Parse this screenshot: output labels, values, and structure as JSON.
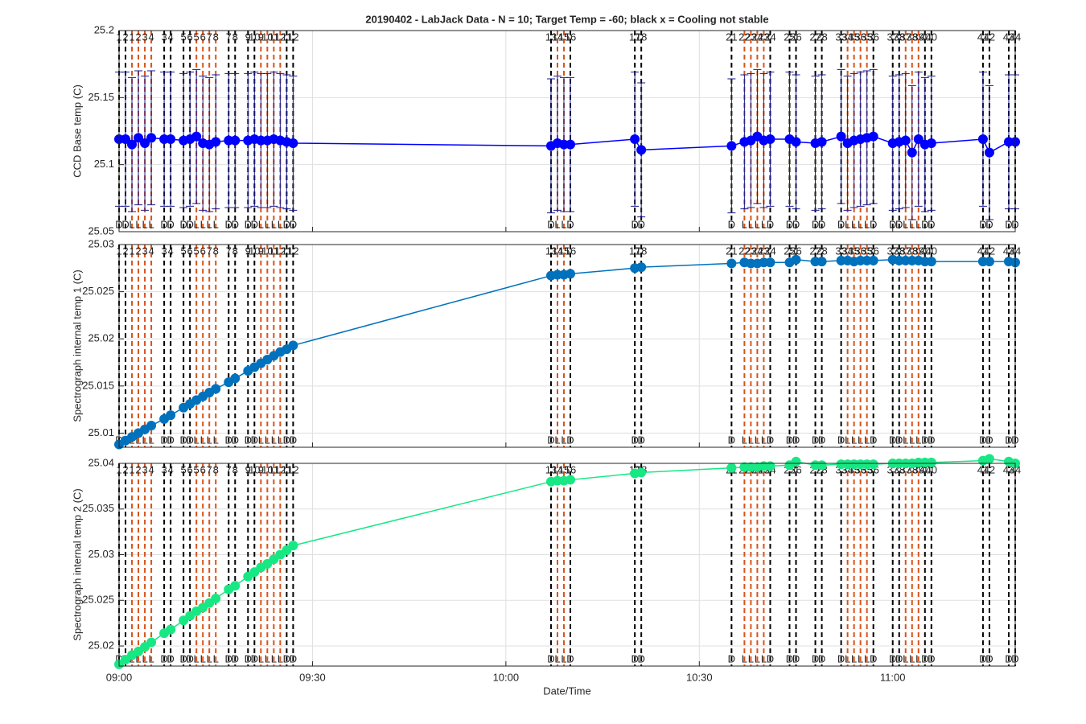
{
  "chart_data": [
    {
      "type": "line",
      "title": "20190402 - LabJack Data - N = 10; Target Temp = -60; black x = Cooling not stable",
      "ylabel": "CCD Base temp (C)",
      "xlim": [
        "09:00",
        "11:19"
      ],
      "xticks": [
        "09:00",
        "09:30",
        "10:00",
        "10:30",
        "11:00"
      ],
      "ylim": [
        25.05,
        25.2
      ],
      "yticks": [
        25.05,
        25.1,
        25.15,
        25.2
      ],
      "grid": true,
      "color": "#0000ff",
      "error_color": "#1a1a8c",
      "x": [
        "09:00",
        "09:01",
        "09:02",
        "09:03",
        "09:04",
        "09:05",
        "09:07",
        "09:08",
        "09:10",
        "09:11",
        "09:12",
        "09:13",
        "09:14",
        "09:15",
        "09:17",
        "09:18",
        "09:20",
        "09:21",
        "09:22",
        "09:23",
        "09:24",
        "09:25",
        "09:26",
        "09:27",
        "10:07",
        "10:08",
        "10:09",
        "10:10",
        "10:20",
        "10:21",
        "10:35",
        "10:37",
        "10:38",
        "10:39",
        "10:40",
        "10:41",
        "10:44",
        "10:45",
        "10:48",
        "10:49",
        "10:52",
        "10:53",
        "10:54",
        "10:55",
        "10:56",
        "10:57",
        "11:00",
        "11:01",
        "11:02",
        "11:03",
        "11:04",
        "11:05",
        "11:06",
        "11:14",
        "11:15",
        "11:18",
        "11:19"
      ],
      "values": [
        25.119,
        25.119,
        25.115,
        25.12,
        25.116,
        25.12,
        25.119,
        25.119,
        25.118,
        25.119,
        25.121,
        25.116,
        25.115,
        25.117,
        25.118,
        25.118,
        25.118,
        25.119,
        25.118,
        25.118,
        25.119,
        25.118,
        25.117,
        25.116,
        25.114,
        25.116,
        25.115,
        25.115,
        25.119,
        25.111,
        25.114,
        25.117,
        25.118,
        25.121,
        25.118,
        25.119,
        25.119,
        25.117,
        25.116,
        25.117,
        25.121,
        25.116,
        25.118,
        25.119,
        25.12,
        25.121,
        25.116,
        25.117,
        25.118,
        25.109,
        25.119,
        25.115,
        25.116,
        25.119,
        25.109,
        25.117,
        25.117
      ],
      "errors": [
        0.05,
        0.05,
        0.05,
        0.05,
        0.05,
        0.05,
        0.05,
        0.05,
        0.05,
        0.05,
        0.05,
        0.05,
        0.05,
        0.05,
        0.05,
        0.05,
        0.05,
        0.05,
        0.05,
        0.05,
        0.05,
        0.05,
        0.05,
        0.05,
        0.05,
        0.05,
        0.05,
        0.05,
        0.05,
        0.05,
        0.05,
        0.05,
        0.05,
        0.05,
        0.05,
        0.05,
        0.05,
        0.05,
        0.05,
        0.05,
        0.05,
        0.05,
        0.05,
        0.05,
        0.05,
        0.05,
        0.05,
        0.05,
        0.05,
        0.05,
        0.05,
        0.05,
        0.05,
        0.05,
        0.05,
        0.05,
        0.05
      ],
      "event_colors": {
        "D": "#000000",
        "L": "#d95319"
      },
      "events": [
        {
          "time": "09:00",
          "label": "1",
          "code": "D"
        },
        {
          "time": "09:01",
          "label": "2",
          "code": "D"
        },
        {
          "time": "09:02",
          "label": "1",
          "code": "L"
        },
        {
          "time": "09:03",
          "label": "2",
          "code": "L"
        },
        {
          "time": "09:04",
          "label": "3",
          "code": "L"
        },
        {
          "time": "09:05",
          "label": "4",
          "code": "L"
        },
        {
          "time": "09:07",
          "label": "3",
          "code": "D"
        },
        {
          "time": "09:08",
          "label": "4",
          "code": "D"
        },
        {
          "time": "09:10",
          "label": "5",
          "code": "D"
        },
        {
          "time": "09:11",
          "label": "6",
          "code": "D"
        },
        {
          "time": "09:12",
          "label": "5",
          "code": "L"
        },
        {
          "time": "09:13",
          "label": "6",
          "code": "L"
        },
        {
          "time": "09:14",
          "label": "7",
          "code": "L"
        },
        {
          "time": "09:15",
          "label": "8",
          "code": "L"
        },
        {
          "time": "09:17",
          "label": "7",
          "code": "D"
        },
        {
          "time": "09:18",
          "label": "8",
          "code": "D"
        },
        {
          "time": "09:20",
          "label": "9",
          "code": "D"
        },
        {
          "time": "09:21",
          "label": "10",
          "code": "D"
        },
        {
          "time": "09:22",
          "label": "9",
          "code": "L"
        },
        {
          "time": "09:23",
          "label": "10",
          "code": "L"
        },
        {
          "time": "09:24",
          "label": "11",
          "code": "L"
        },
        {
          "time": "09:25",
          "label": "12",
          "code": "L"
        },
        {
          "time": "09:26",
          "label": "11",
          "code": "D"
        },
        {
          "time": "09:27",
          "label": "12",
          "code": "D"
        },
        {
          "time": "10:07",
          "label": "13",
          "code": "D"
        },
        {
          "time": "10:08",
          "label": "14",
          "code": "L"
        },
        {
          "time": "10:09",
          "label": "15",
          "code": "L"
        },
        {
          "time": "10:10",
          "label": "16",
          "code": "D"
        },
        {
          "time": "10:20",
          "label": "17",
          "code": "D"
        },
        {
          "time": "10:21",
          "label": "18",
          "code": "D"
        },
        {
          "time": "10:35",
          "label": "21",
          "code": "D"
        },
        {
          "time": "10:37",
          "label": "22",
          "code": "L"
        },
        {
          "time": "10:38",
          "label": "23",
          "code": "L"
        },
        {
          "time": "10:39",
          "label": "24",
          "code": "L"
        },
        {
          "time": "10:40",
          "label": "23",
          "code": "L"
        },
        {
          "time": "10:41",
          "label": "24",
          "code": "D"
        },
        {
          "time": "10:44",
          "label": "25",
          "code": "D"
        },
        {
          "time": "10:45",
          "label": "26",
          "code": "D"
        },
        {
          "time": "10:48",
          "label": "27",
          "code": "D"
        },
        {
          "time": "10:49",
          "label": "28",
          "code": "D"
        },
        {
          "time": "10:52",
          "label": "33",
          "code": "D"
        },
        {
          "time": "10:53",
          "label": "34",
          "code": "L"
        },
        {
          "time": "10:54",
          "label": "35",
          "code": "L"
        },
        {
          "time": "10:55",
          "label": "36",
          "code": "L"
        },
        {
          "time": "10:56",
          "label": "35",
          "code": "L"
        },
        {
          "time": "10:57",
          "label": "36",
          "code": "D"
        },
        {
          "time": "11:00",
          "label": "37",
          "code": "D"
        },
        {
          "time": "11:01",
          "label": "38",
          "code": "D"
        },
        {
          "time": "11:02",
          "label": "37",
          "code": "L"
        },
        {
          "time": "11:03",
          "label": "38",
          "code": "L"
        },
        {
          "time": "11:04",
          "label": "39",
          "code": "L"
        },
        {
          "time": "11:05",
          "label": "40",
          "code": "D"
        },
        {
          "time": "11:06",
          "label": "40",
          "code": "D"
        },
        {
          "time": "11:14",
          "label": "41",
          "code": "D"
        },
        {
          "time": "11:15",
          "label": "42",
          "code": "D"
        },
        {
          "time": "11:18",
          "label": "43",
          "code": "D"
        },
        {
          "time": "11:19",
          "label": "44",
          "code": "D"
        }
      ]
    },
    {
      "type": "line",
      "ylabel": "Spectrograph internal temp 1 (C)",
      "xlim": [
        "09:00",
        "11:19"
      ],
      "xticks": [
        "09:00",
        "09:30",
        "10:00",
        "10:30",
        "11:00"
      ],
      "ylim": [
        25.0085,
        25.03
      ],
      "yticks": [
        25.01,
        25.015,
        25.02,
        25.025,
        25.03
      ],
      "grid": true,
      "color": "#0072bd",
      "x": [
        "09:00",
        "09:01",
        "09:02",
        "09:03",
        "09:04",
        "09:05",
        "09:07",
        "09:08",
        "09:10",
        "09:11",
        "09:12",
        "09:13",
        "09:14",
        "09:15",
        "09:17",
        "09:18",
        "09:20",
        "09:21",
        "09:22",
        "09:23",
        "09:24",
        "09:25",
        "09:26",
        "09:27",
        "10:07",
        "10:08",
        "10:09",
        "10:10",
        "10:20",
        "10:21",
        "10:35",
        "10:37",
        "10:38",
        "10:39",
        "10:40",
        "10:41",
        "10:44",
        "10:45",
        "10:48",
        "10:49",
        "10:52",
        "10:53",
        "10:54",
        "10:55",
        "10:56",
        "10:57",
        "11:00",
        "11:01",
        "11:02",
        "11:03",
        "11:04",
        "11:05",
        "11:06",
        "11:14",
        "11:15",
        "11:18",
        "11:19"
      ],
      "values": [
        25.0088,
        25.0092,
        25.0096,
        25.01,
        25.0104,
        25.0108,
        25.0115,
        25.0119,
        25.0127,
        25.0131,
        25.0135,
        25.0139,
        25.0143,
        25.0147,
        25.0154,
        25.0158,
        25.0166,
        25.017,
        25.0174,
        25.0178,
        25.0182,
        25.0186,
        25.0189,
        25.0193,
        25.0267,
        25.0268,
        25.0268,
        25.0269,
        25.0275,
        25.0276,
        25.028,
        25.0281,
        25.028,
        25.028,
        25.0281,
        25.0281,
        25.0281,
        25.0284,
        25.0282,
        25.0282,
        25.0283,
        25.0283,
        25.0282,
        25.0283,
        25.0283,
        25.0283,
        25.0284,
        25.0283,
        25.0283,
        25.0283,
        25.0283,
        25.0282,
        25.0282,
        25.0282,
        25.0282,
        25.0282,
        25.0281
      ]
    },
    {
      "type": "line",
      "ylabel": "Spectrograph internal temp 2 (C)",
      "xlabel": "Date/Time",
      "xtick_labels": true,
      "xlim": [
        "09:00",
        "11:19"
      ],
      "xticks": [
        "09:00",
        "09:30",
        "10:00",
        "10:30",
        "11:00"
      ],
      "ylim": [
        25.0178,
        25.04
      ],
      "yticks": [
        25.02,
        25.025,
        25.03,
        25.035,
        25.04
      ],
      "grid": true,
      "color": "#17e884",
      "x": [
        "09:00",
        "09:01",
        "09:02",
        "09:03",
        "09:04",
        "09:05",
        "09:07",
        "09:08",
        "09:10",
        "09:11",
        "09:12",
        "09:13",
        "09:14",
        "09:15",
        "09:17",
        "09:18",
        "09:20",
        "09:21",
        "09:22",
        "09:23",
        "09:24",
        "09:25",
        "09:26",
        "09:27",
        "10:07",
        "10:08",
        "10:09",
        "10:10",
        "10:20",
        "10:21",
        "10:35",
        "10:37",
        "10:38",
        "10:39",
        "10:40",
        "10:41",
        "10:44",
        "10:45",
        "10:48",
        "10:49",
        "10:52",
        "10:53",
        "10:54",
        "10:55",
        "10:56",
        "10:57",
        "11:00",
        "11:01",
        "11:02",
        "11:03",
        "11:04",
        "11:05",
        "11:06",
        "11:14",
        "11:15",
        "11:18",
        "11:19"
      ],
      "values": [
        25.018,
        25.0185,
        25.019,
        25.0194,
        25.0199,
        25.0204,
        25.0214,
        25.0218,
        25.0228,
        25.0233,
        25.0238,
        25.0242,
        25.0247,
        25.0252,
        25.0262,
        25.0266,
        25.0276,
        25.0281,
        25.0286,
        25.029,
        25.0295,
        25.03,
        25.0305,
        25.031,
        25.038,
        25.0381,
        25.0381,
        25.0382,
        25.0389,
        25.039,
        25.0395,
        25.0396,
        25.0396,
        25.0396,
        25.0397,
        25.0397,
        25.0398,
        25.0402,
        25.0398,
        25.0398,
        25.0399,
        25.0399,
        25.0399,
        25.0399,
        25.0399,
        25.0399,
        25.04,
        25.04,
        25.04,
        25.04,
        25.0401,
        25.0401,
        25.0401,
        25.0403,
        25.0405,
        25.0402,
        25.04
      ]
    }
  ]
}
